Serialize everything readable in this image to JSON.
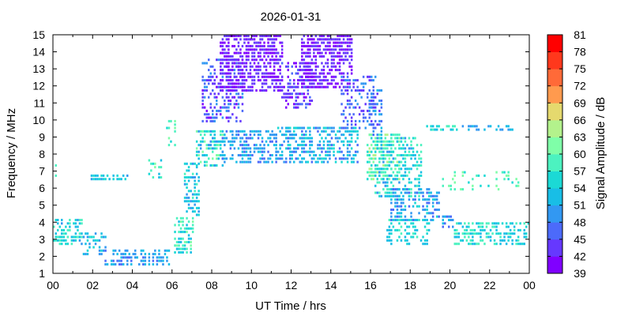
{
  "chart_data": {
    "type": "heatmap",
    "title": "2026-01-31",
    "xlabel": "UT Time / hrs",
    "ylabel": "Frequency / MHz",
    "colorbar_label": "Signal Amplitude / dB",
    "xlim": [
      0,
      24
    ],
    "ylim": [
      1,
      15
    ],
    "x_ticks": [
      "00",
      "02",
      "04",
      "06",
      "08",
      "10",
      "12",
      "14",
      "16",
      "18",
      "20",
      "22",
      "00"
    ],
    "y_ticks": [
      "1",
      "2",
      "3",
      "4",
      "5",
      "6",
      "7",
      "8",
      "9",
      "10",
      "11",
      "12",
      "13",
      "14",
      "15"
    ],
    "colorbar_ticks": [
      "39",
      "42",
      "45",
      "48",
      "51",
      "54",
      "57",
      "60",
      "63",
      "66",
      "69",
      "72",
      "75",
      "78",
      "81"
    ],
    "colorbar_range": [
      39,
      81
    ],
    "colorbar_colors": [
      "#8000ff",
      "#6638fe",
      "#4c6afa",
      "#3298f2",
      "#18bee6",
      "#1bd9d5",
      "#4cf2c0",
      "#7ffea8",
      "#b3f28c",
      "#e5d96e",
      "#ff9a4e",
      "#ff6a38",
      "#ff381c",
      "#ff0000"
    ],
    "grid": false,
    "legend": "colorbar-right",
    "regions": [
      {
        "t": [
          0.0,
          1.5
        ],
        "f": [
          2.8,
          4.4
        ],
        "amp": [
          50,
          60
        ],
        "density": 0.55
      },
      {
        "t": [
          1.5,
          2.8
        ],
        "f": [
          2.2,
          3.6
        ],
        "amp": [
          48,
          56
        ],
        "density": 0.45
      },
      {
        "t": [
          2.6,
          5.8
        ],
        "f": [
          1.6,
          2.5
        ],
        "amp": [
          47,
          53
        ],
        "density": 0.45
      },
      {
        "t": [
          1.8,
          3.8
        ],
        "f": [
          6.6,
          6.9
        ],
        "amp": [
          50,
          56
        ],
        "density": 0.7
      },
      {
        "t": [
          0.0,
          0.2
        ],
        "f": [
          6.8,
          7.5
        ],
        "amp": [
          55,
          60
        ],
        "density": 0.4
      },
      {
        "t": [
          4.8,
          5.4
        ],
        "f": [
          6.7,
          7.9
        ],
        "amp": [
          52,
          62
        ],
        "density": 0.35
      },
      {
        "t": [
          5.6,
          6.1
        ],
        "f": [
          8.6,
          10.0
        ],
        "amp": [
          55,
          63
        ],
        "density": 0.2
      },
      {
        "t": [
          6.1,
          7.0
        ],
        "f": [
          2.3,
          4.5
        ],
        "amp": [
          52,
          62
        ],
        "density": 0.5
      },
      {
        "t": [
          6.6,
          7.3
        ],
        "f": [
          4.5,
          7.6
        ],
        "amp": [
          49,
          58
        ],
        "density": 0.55
      },
      {
        "t": [
          7.2,
          8.5
        ],
        "f": [
          7.4,
          9.4
        ],
        "amp": [
          50,
          62
        ],
        "density": 0.5
      },
      {
        "t": [
          8.5,
          11.2
        ],
        "f": [
          7.6,
          9.4
        ],
        "amp": [
          46,
          54
        ],
        "density": 0.5
      },
      {
        "t": [
          11.2,
          15.3
        ],
        "f": [
          7.6,
          9.6
        ],
        "amp": [
          46,
          56
        ],
        "density": 0.55
      },
      {
        "t": [
          7.5,
          9.5
        ],
        "f": [
          10.0,
          13.6
        ],
        "amp": [
          40,
          50
        ],
        "density": 0.45
      },
      {
        "t": [
          8.4,
          11.5
        ],
        "f": [
          11.8,
          15.0
        ],
        "amp": [
          39,
          45
        ],
        "density": 0.65
      },
      {
        "t": [
          11.5,
          13.0
        ],
        "f": [
          10.8,
          13.4
        ],
        "amp": [
          40,
          47
        ],
        "density": 0.45
      },
      {
        "t": [
          12.5,
          15.0
        ],
        "f": [
          12.0,
          15.0
        ],
        "amp": [
          39,
          45
        ],
        "density": 0.65
      },
      {
        "t": [
          14.5,
          16.2
        ],
        "f": [
          9.6,
          12.6
        ],
        "amp": [
          43,
          50
        ],
        "density": 0.35
      },
      {
        "t": [
          15.9,
          16.6
        ],
        "f": [
          9.2,
          11.8
        ],
        "amp": [
          44,
          52
        ],
        "density": 0.4
      },
      {
        "t": [
          15.8,
          17.5
        ],
        "f": [
          6.6,
          9.2
        ],
        "amp": [
          56,
          64
        ],
        "density": 0.5
      },
      {
        "t": [
          16.2,
          18.6
        ],
        "f": [
          5.6,
          9.0
        ],
        "amp": [
          50,
          60
        ],
        "density": 0.45
      },
      {
        "t": [
          17.0,
          19.5
        ],
        "f": [
          4.2,
          6.2
        ],
        "amp": [
          46,
          56
        ],
        "density": 0.45
      },
      {
        "t": [
          16.8,
          19.0
        ],
        "f": [
          2.8,
          4.4
        ],
        "amp": [
          51,
          58
        ],
        "density": 0.4
      },
      {
        "t": [
          18.8,
          20.4
        ],
        "f": [
          9.5,
          9.8
        ],
        "amp": [
          52,
          60
        ],
        "density": 0.4
      },
      {
        "t": [
          20.6,
          23.2
        ],
        "f": [
          9.5,
          9.8
        ],
        "amp": [
          48,
          54
        ],
        "density": 0.4
      },
      {
        "t": [
          19.5,
          23.5
        ],
        "f": [
          6.0,
          7.2
        ],
        "amp": [
          55,
          62
        ],
        "density": 0.22
      },
      {
        "t": [
          20.2,
          24.0
        ],
        "f": [
          2.8,
          4.2
        ],
        "amp": [
          51,
          60
        ],
        "density": 0.55
      },
      {
        "t": [
          19.5,
          20.2
        ],
        "f": [
          3.8,
          4.6
        ],
        "amp": [
          47,
          52
        ],
        "density": 0.45
      }
    ]
  }
}
